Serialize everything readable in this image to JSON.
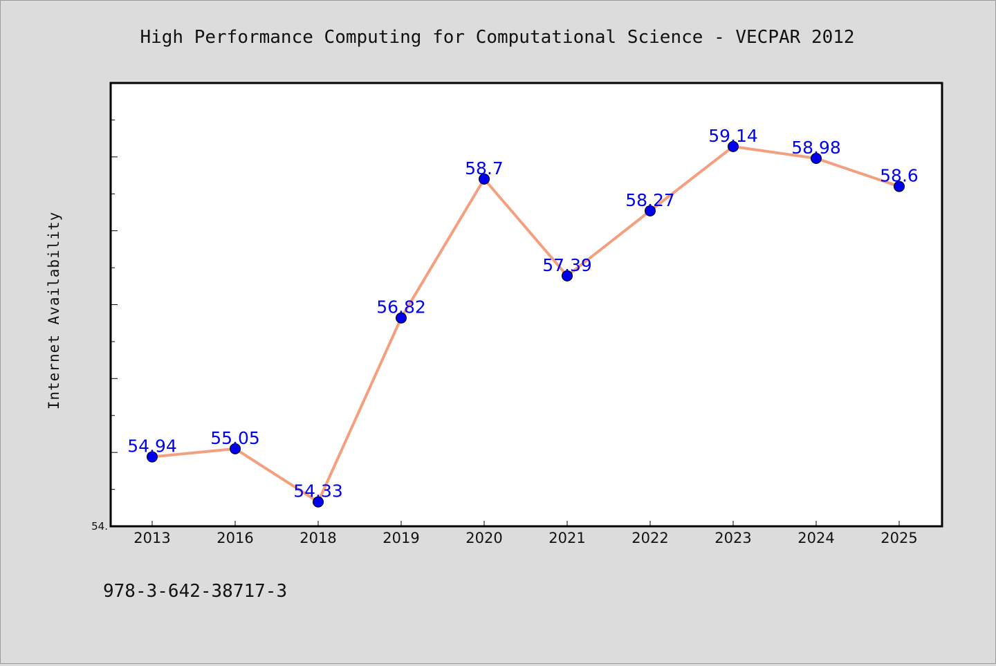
{
  "chart_data": {
    "type": "line",
    "title": "High Performance Computing for Computational Science - VECPAR 2012",
    "ylabel": "Internet Availability",
    "xlabel": "",
    "categories": [
      "2013",
      "2016",
      "2018",
      "2019",
      "2020",
      "2021",
      "2022",
      "2023",
      "2024",
      "2025"
    ],
    "series": [
      {
        "values": [
          54.94,
          55.05,
          54.33,
          56.82,
          58.7,
          57.39,
          58.27,
          59.14,
          58.98,
          58.6
        ],
        "data_labels": [
          "54.94",
          "55.05",
          "54.33",
          "56.82",
          "58.7",
          "57.39",
          "58.27",
          "59.14",
          "58.98",
          "58.6"
        ],
        "line_color": "#f4a07e",
        "marker_color": "#0000ee"
      }
    ],
    "ylim": [
      54.0,
      60.0
    ],
    "y_tick_labels": [
      "54."
    ],
    "grid": false,
    "legend": "none"
  },
  "footer_text": "978-3-642-38717-3",
  "colors": {
    "background": "#dcdcdc",
    "plot_background": "#ffffff",
    "axis": "#000000",
    "data_label": "#0000ee"
  }
}
